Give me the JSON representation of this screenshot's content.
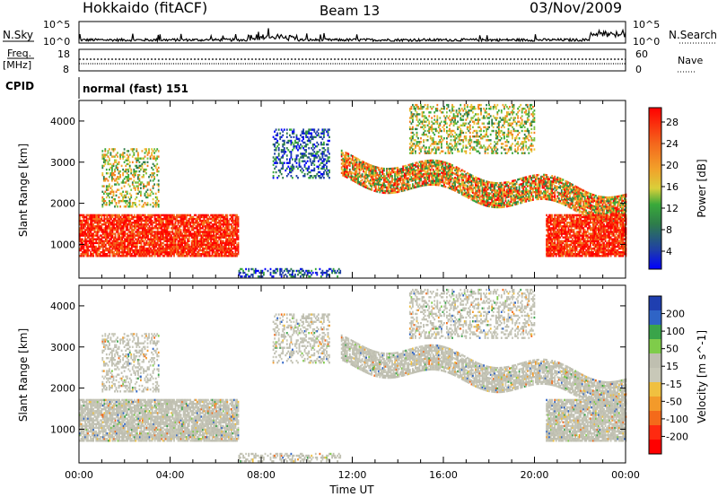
{
  "header": {
    "station": "Hokkaido (fitACF)",
    "beam": "Beam 13",
    "date": "03/Nov/2009"
  },
  "strip_labels": {
    "nsky": "N.Sky",
    "nsky_top": "10^5",
    "nsky_bottom": "10^0",
    "nsearch": "N.Search",
    "nsearch_top": "10^5",
    "nsearch_bottom": "10^0",
    "freq": "Freq.",
    "freq_unit": "[MHz]",
    "freq_top": "18",
    "freq_bottom": "8",
    "nave": "Nave",
    "nave_top": "60",
    "nave_bottom": "0",
    "cpid": "CPID",
    "cpid_value": "normal (fast) 151"
  },
  "chart_data": [
    {
      "type": "heatmap",
      "panel": "power",
      "ylabel": "Slant Range [km]",
      "yticks": [
        1000,
        2000,
        3000,
        4000
      ],
      "ylim": [
        180,
        4500
      ],
      "xlim": [
        0,
        24
      ],
      "colorbar_label": "Power [dB]",
      "colorbar_ticks": [
        "4",
        "8",
        "12",
        "16",
        "20",
        "24",
        "28"
      ],
      "colorbar_colors": [
        "#0000ff",
        "#1f3fa6",
        "#2e7d4a",
        "#39a93a",
        "#7fc241",
        "#e6c93a",
        "#f2a12a",
        "#f47a1c",
        "#f0521a",
        "#ff2200",
        "#ff0000"
      ],
      "echo_regions": [
        {
          "t0": 0.0,
          "t1": 7.0,
          "r0": 700,
          "r1": 1700,
          "level": "high"
        },
        {
          "t0": 1.0,
          "t1": 3.5,
          "r0": 1900,
          "r1": 3300,
          "level": "mixed"
        },
        {
          "t0": 7.0,
          "t1": 11.5,
          "r0": 200,
          "r1": 400,
          "level": "low"
        },
        {
          "t0": 8.5,
          "t1": 11.0,
          "r0": 2600,
          "r1": 3800,
          "level": "low"
        },
        {
          "t0": 11.5,
          "t1": 24.0,
          "r0": 1500,
          "r1": 3100,
          "level": "high-band"
        },
        {
          "t0": 14.5,
          "t1": 20.0,
          "r0": 3200,
          "r1": 4400,
          "level": "mixed"
        },
        {
          "t0": 20.5,
          "t1": 24.0,
          "r0": 700,
          "r1": 1700,
          "level": "high"
        }
      ]
    },
    {
      "type": "heatmap",
      "panel": "velocity",
      "ylabel": "Slant Range [km]",
      "yticks": [
        1000,
        2000,
        3000,
        4000
      ],
      "ylim": [
        180,
        4500
      ],
      "xlim": [
        0,
        24
      ],
      "colorbar_label": "Velocity [m s^-1]",
      "colorbar_ticks": [
        "200",
        "100",
        "50",
        "15",
        "-15",
        "-50",
        "-100",
        "-200"
      ],
      "colorbar_colors": [
        "#1f3fb0",
        "#2f64c6",
        "#3aa44a",
        "#7fcc4a",
        "#bfbfb0",
        "#c8c8b8",
        "#f0c040",
        "#f39a2a",
        "#f46a1a",
        "#ff2a10",
        "#ff0000"
      ],
      "xlabel": "Time UT",
      "xticks": [
        "00:00",
        "04:00",
        "08:00",
        "12:00",
        "16:00",
        "20:00",
        "00:00"
      ]
    }
  ]
}
